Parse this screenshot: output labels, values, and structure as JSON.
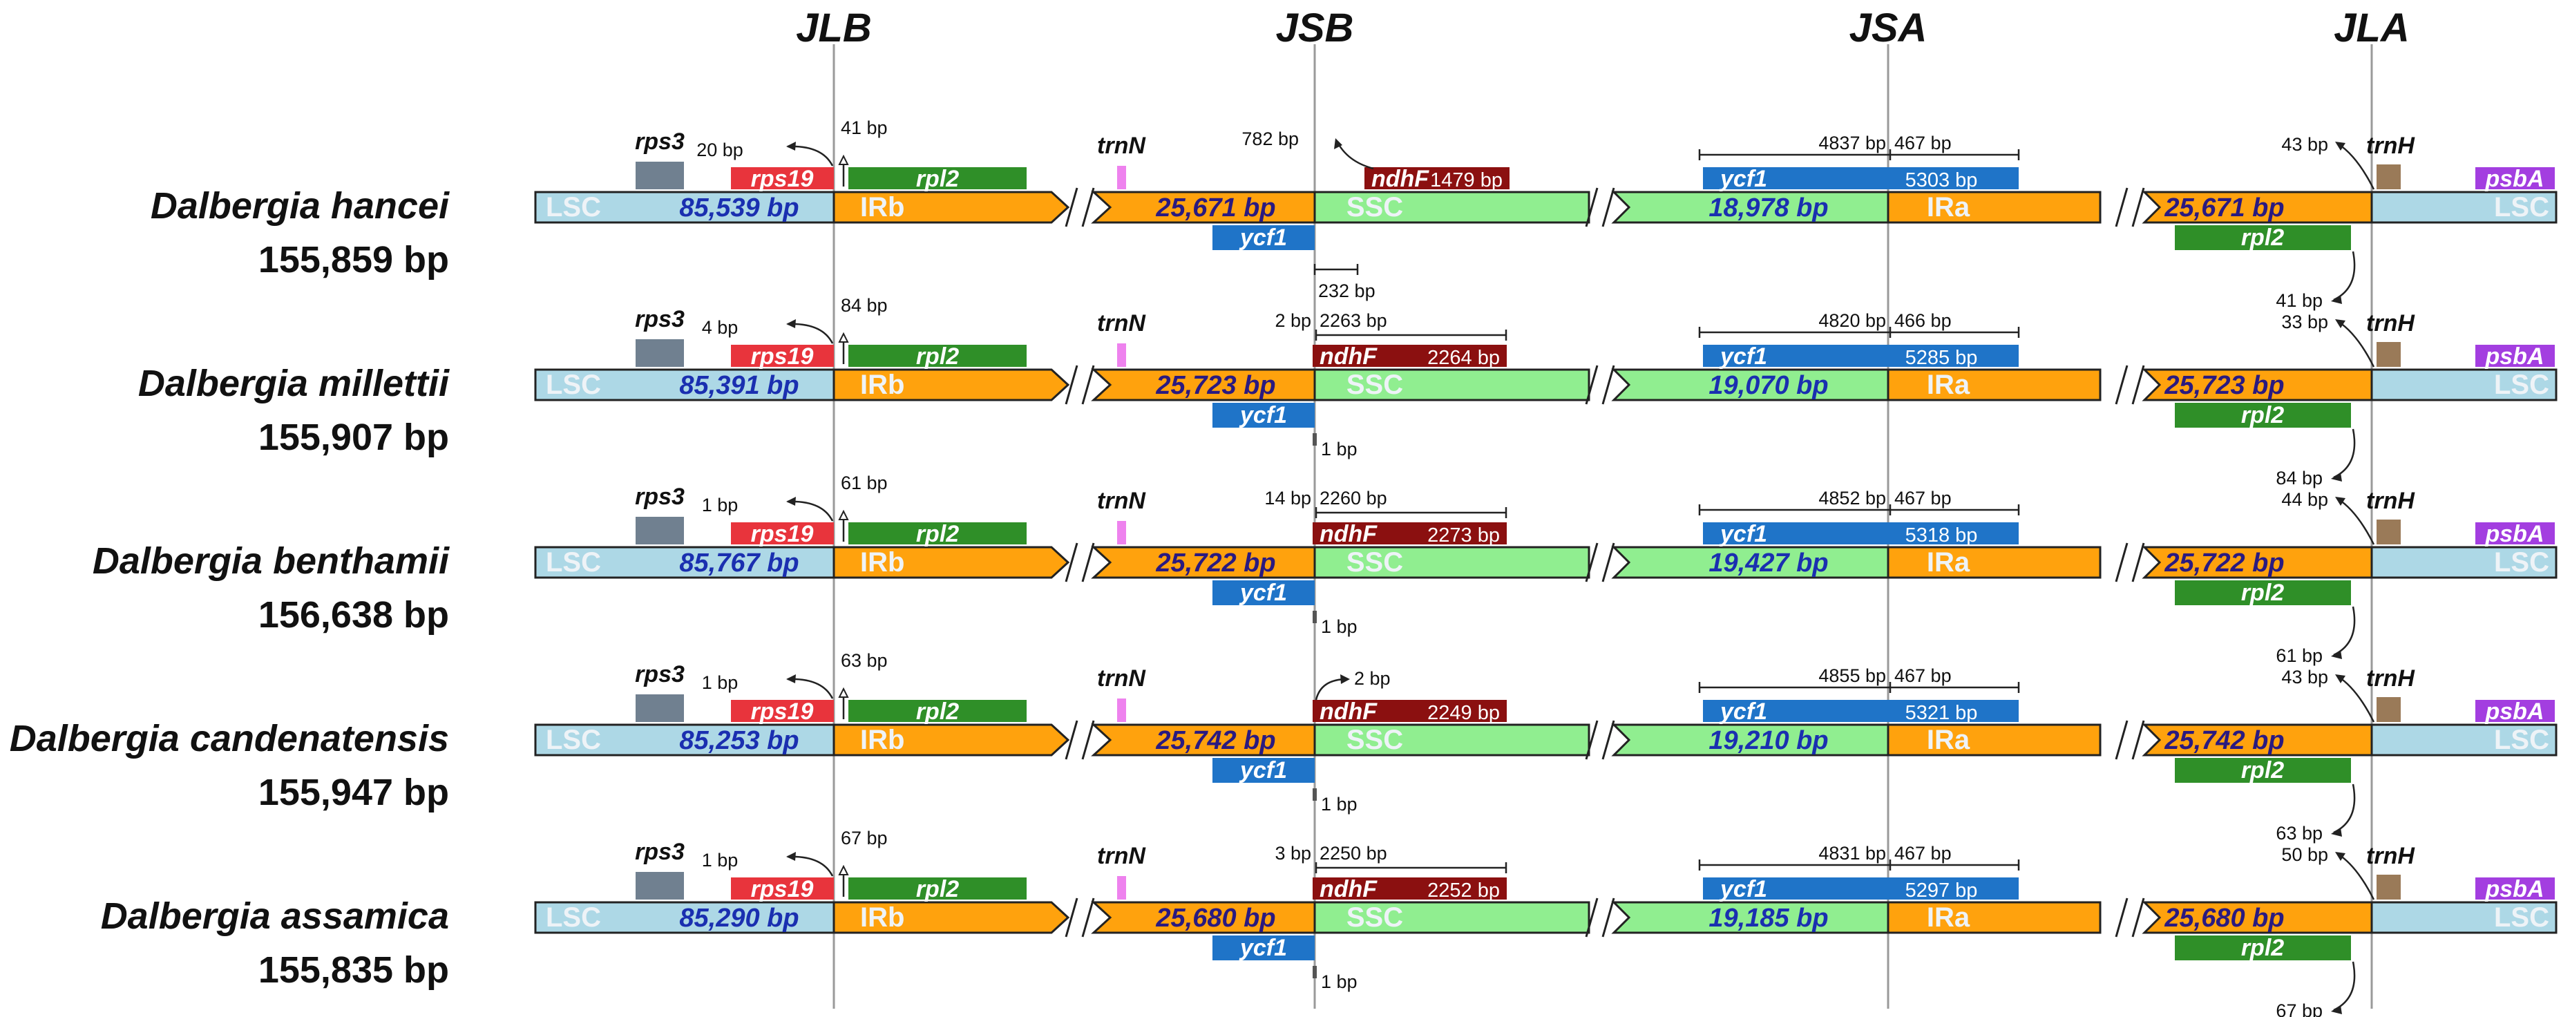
{
  "junctions": [
    "JLB",
    "JSB",
    "JSA",
    "JLA"
  ],
  "colors": {
    "LSC": "#add8e6",
    "IR": "#ffa20d",
    "SSC": "#90ee90",
    "rps3": "#708090",
    "rps19": "#e8343c",
    "rpl2": "#2f8f28",
    "trnN": "#ee82ee",
    "ycf1": "#1f74c8",
    "ndhF": "#8b1010",
    "trnH": "#9a7a58",
    "psbA": "#a33ee0",
    "lscText": "#1a2fb0",
    "irText": "#2a1a80",
    "sscText": "#1a2fb0"
  },
  "region_names": {
    "lsc": "LSC",
    "irb": "IRb",
    "ssc": "SSC",
    "ira": "IRa"
  },
  "gene_names": {
    "rps3": "rps3",
    "rps19": "rps19",
    "rpl2": "rpl2",
    "trnN": "trnN",
    "ycf1": "ycf1",
    "ndhF": "ndhF",
    "trnH": "trnH",
    "psbA": "psbA"
  },
  "species": [
    {
      "name": "Dalbergia hancei",
      "size": "155,859 bp",
      "lsc": "85,539 bp",
      "ir": "25,671 bp",
      "ssc": "18,978 bp",
      "ira": "25,671 bp",
      "jlb_left": "20 bp",
      "jlb_right": "41 bp",
      "jsb_variant": "hancei",
      "jsb_top": "782 bp",
      "jsb_bottom": "232 bp",
      "ndhF_len": "1479 bp",
      "jsa_left": "4837 bp",
      "jsa_right": "467 bp",
      "ycf1_len": "5303 bp",
      "jla_top": "43 bp",
      "jla_bottom": "41 bp"
    },
    {
      "name": "Dalbergia millettii",
      "size": "155,907 bp",
      "lsc": "85,391 bp",
      "ir": "25,723 bp",
      "ssc": "19,070 bp",
      "ira": "25,723 bp",
      "jlb_left": "4 bp",
      "jlb_right": "84 bp",
      "jsb_variant": "span",
      "jsb_top_left": "2 bp",
      "jsb_top_right": "2263 bp",
      "jsb_bottom": "1 bp",
      "ndhF_len": "2264 bp",
      "jsa_left": "4820 bp",
      "jsa_right": "466 bp",
      "ycf1_len": "5285 bp",
      "jla_top": "33 bp",
      "jla_bottom": "84 bp"
    },
    {
      "name": "Dalbergia benthamii",
      "size": "156,638 bp",
      "lsc": "85,767 bp",
      "ir": "25,722 bp",
      "ssc": "19,427 bp",
      "ira": "25,722 bp",
      "jlb_left": "1 bp",
      "jlb_right": "61 bp",
      "jsb_variant": "span",
      "jsb_top_left": "14 bp",
      "jsb_top_right": "2260 bp",
      "jsb_bottom": "1 bp",
      "ndhF_len": "2273 bp",
      "jsa_left": "4852 bp",
      "jsa_right": "467 bp",
      "ycf1_len": "5318 bp",
      "jla_top": "44 bp",
      "jla_bottom": "61 bp"
    },
    {
      "name": "Dalbergia candenatensis",
      "size": "155,947 bp",
      "lsc": "85,253 bp",
      "ir": "25,742 bp",
      "ssc": "19,210 bp",
      "ira": "25,742 bp",
      "jlb_left": "1 bp",
      "jlb_right": "63 bp",
      "jsb_variant": "arrow",
      "jsb_top": "2 bp",
      "jsb_bottom": "1 bp",
      "ndhF_len": "2249 bp",
      "jsa_left": "4855 bp",
      "jsa_right": "467 bp",
      "ycf1_len": "5321 bp",
      "jla_top": "43 bp",
      "jla_bottom": "63 bp"
    },
    {
      "name": "Dalbergia assamica",
      "size": "155,835 bp",
      "lsc": "85,290 bp",
      "ir": "25,680 bp",
      "ssc": "19,185 bp",
      "ira": "25,680 bp",
      "jlb_left": "1 bp",
      "jlb_right": "67 bp",
      "jsb_variant": "span",
      "jsb_top_left": "3 bp",
      "jsb_top_right": "2250 bp",
      "jsb_bottom": "1 bp",
      "ndhF_len": "2252 bp",
      "jsa_left": "4831 bp",
      "jsa_right": "467 bp",
      "ycf1_len": "5297 bp",
      "jla_top": "50 bp",
      "jla_bottom": "67 bp"
    }
  ]
}
